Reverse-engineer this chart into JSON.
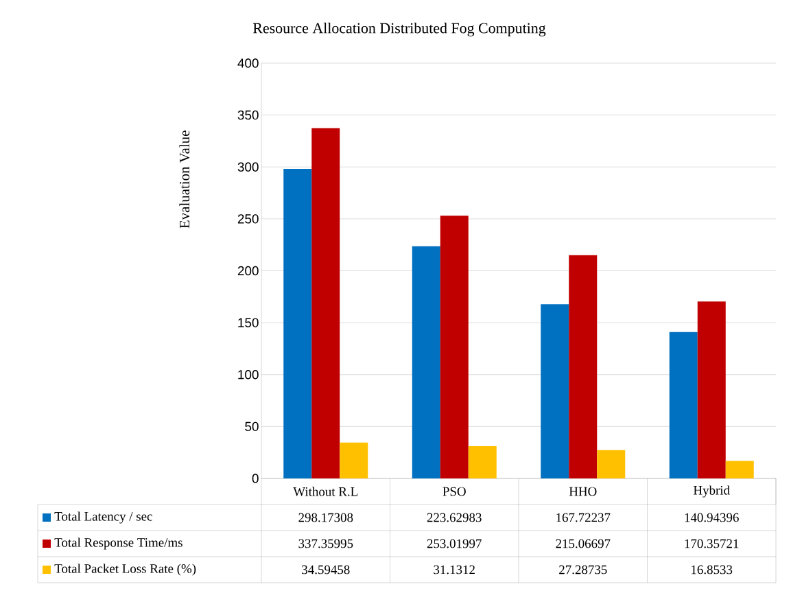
{
  "chart_data": {
    "type": "bar",
    "title": "Resource Allocation Distributed Fog Computing",
    "ylabel": "Evaluation Value",
    "categories": [
      "Without R.L",
      "PSO",
      "HHO",
      "Hybrid"
    ],
    "series": [
      {
        "name": "Total Latency / sec",
        "color": "#0070c0",
        "values": [
          298.17308,
          223.62983,
          167.72237,
          140.94396
        ]
      },
      {
        "name": "Total Response Time/ms",
        "color": "#c00000",
        "values": [
          337.35995,
          253.01997,
          215.06697,
          170.35721
        ]
      },
      {
        "name": "Total Packet Loss Rate (%)",
        "color": "#ffc000",
        "values": [
          34.59458,
          31.1312,
          27.28735,
          16.8533
        ]
      }
    ],
    "ylim": [
      0,
      400
    ],
    "yticks": [
      0,
      50,
      100,
      150,
      200,
      250,
      300,
      350,
      400
    ],
    "grid": "y",
    "legend": "bottom",
    "data_labels": true
  }
}
